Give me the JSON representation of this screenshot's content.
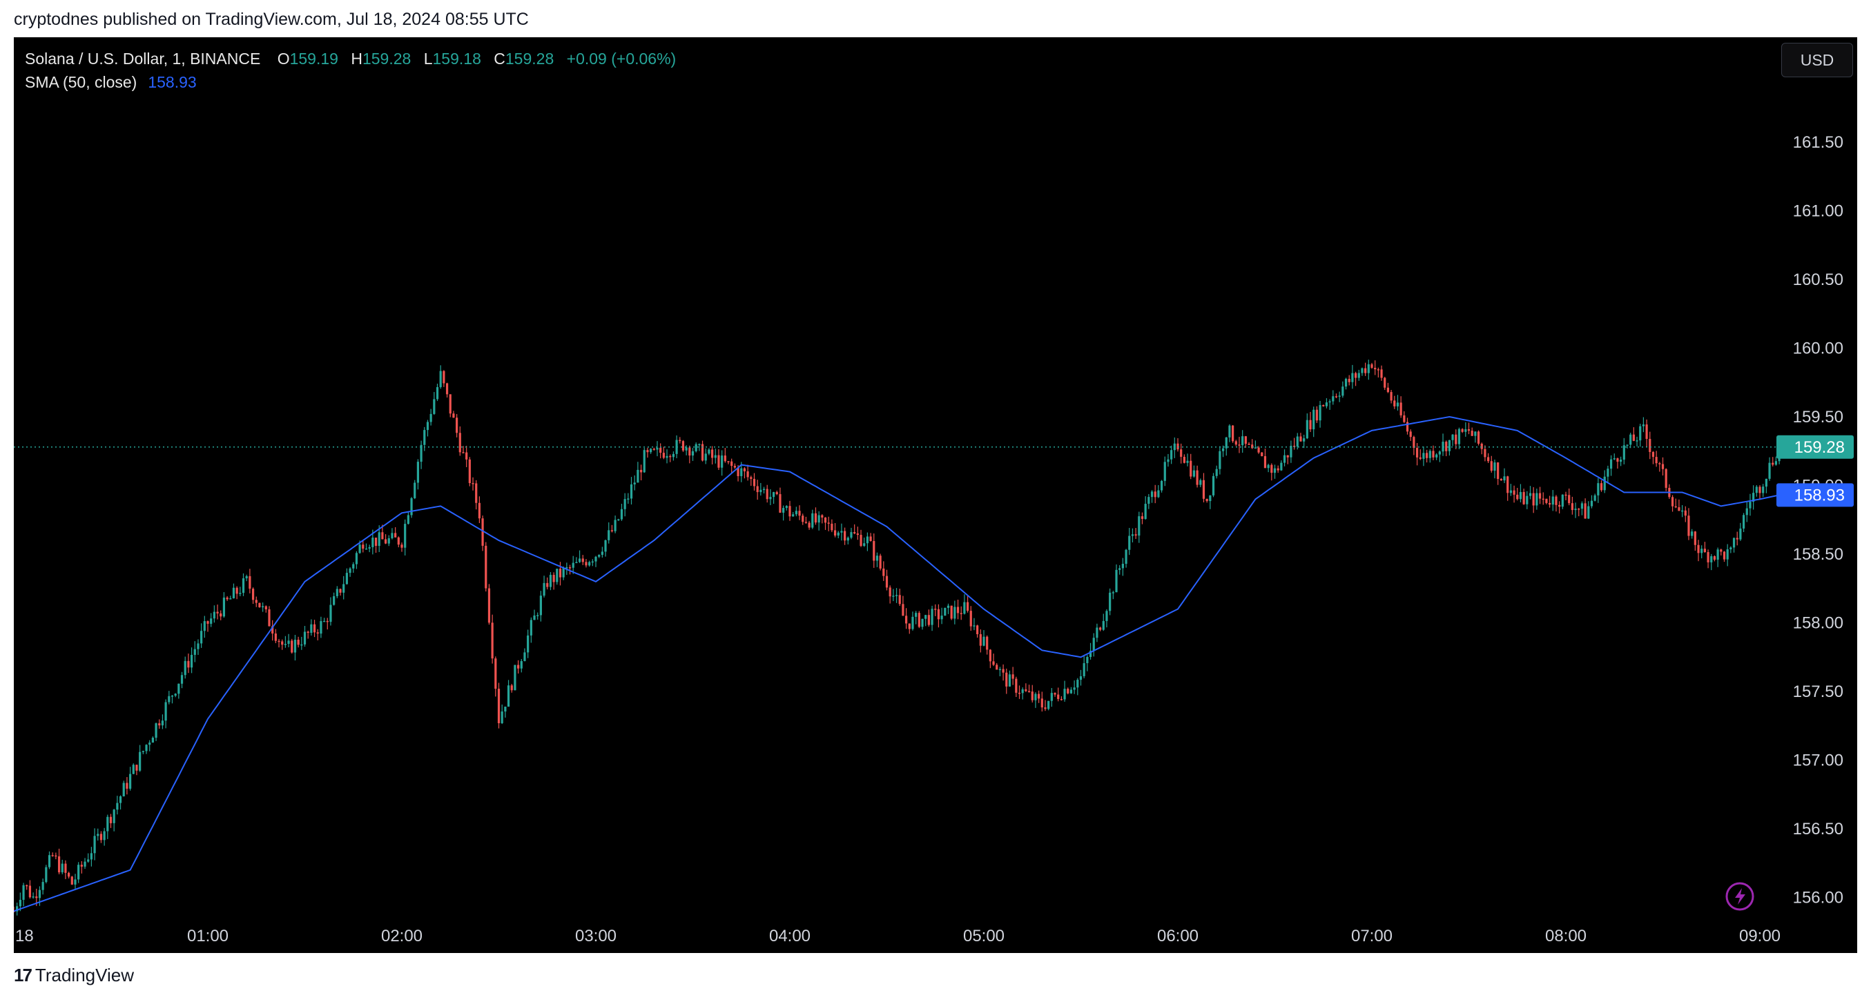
{
  "header": {
    "published_text": "cryptodnes published on TradingView.com, Jul 18, 2024 08:55 UTC"
  },
  "legend": {
    "symbol": "Solana / U.S. Dollar, 1, BINANCE",
    "open_key": "O",
    "open": "159.19",
    "high_key": "H",
    "high": "159.28",
    "low_key": "L",
    "low": "159.18",
    "close_key": "C",
    "close": "159.28",
    "change": "+0.09 (+0.06%)",
    "sma_label": "SMA (50, close)",
    "sma_value": "158.93"
  },
  "toolbar": {
    "currency_label": "USD"
  },
  "footer": {
    "brand": "TradingView",
    "logo_mark": "17"
  },
  "colors": {
    "up": "#26a69a",
    "down": "#ef5350",
    "sma": "#2962ff",
    "background": "#000000"
  },
  "icons": {
    "lightning": "lightning-icon"
  },
  "chart_data": {
    "type": "candlestick",
    "title": "Solana / U.S. Dollar, 1, BINANCE",
    "ylim": [
      155.7,
      162.0
    ],
    "y_ticks": [
      "156.00",
      "156.50",
      "157.00",
      "157.50",
      "158.00",
      "158.50",
      "159.00",
      "159.50",
      "160.00",
      "160.50",
      "161.00",
      "161.50"
    ],
    "x_ticks": [
      "18",
      "01:00",
      "02:00",
      "03:00",
      "04:00",
      "05:00",
      "06:00",
      "07:00",
      "08:00",
      "09:00"
    ],
    "last_price_label": "159.28",
    "sma_label": "158.93",
    "price_path": [
      [
        0.0,
        155.9
      ],
      [
        0.05,
        156.1
      ],
      [
        0.1,
        156.0
      ],
      [
        0.2,
        156.3
      ],
      [
        0.3,
        156.1
      ],
      [
        0.5,
        156.6
      ],
      [
        0.75,
        157.3
      ],
      [
        1.0,
        158.0
      ],
      [
        1.2,
        158.3
      ],
      [
        1.4,
        157.8
      ],
      [
        1.6,
        158.0
      ],
      [
        1.8,
        158.6
      ],
      [
        2.0,
        158.6
      ],
      [
        2.1,
        159.3
      ],
      [
        2.2,
        159.8
      ],
      [
        2.4,
        158.8
      ],
      [
        2.5,
        157.3
      ],
      [
        2.75,
        158.3
      ],
      [
        3.0,
        158.5
      ],
      [
        3.1,
        158.7
      ],
      [
        3.25,
        159.2
      ],
      [
        3.45,
        159.3
      ],
      [
        3.75,
        159.1
      ],
      [
        4.0,
        158.8
      ],
      [
        4.4,
        158.6
      ],
      [
        4.6,
        158.0
      ],
      [
        4.9,
        158.1
      ],
      [
        5.1,
        157.6
      ],
      [
        5.3,
        157.4
      ],
      [
        5.5,
        157.6
      ],
      [
        5.75,
        158.6
      ],
      [
        6.0,
        159.3
      ],
      [
        6.15,
        158.9
      ],
      [
        6.25,
        159.4
      ],
      [
        6.5,
        159.1
      ],
      [
        6.75,
        159.6
      ],
      [
        7.0,
        159.9
      ],
      [
        7.15,
        159.5
      ],
      [
        7.25,
        159.2
      ],
      [
        7.5,
        159.4
      ],
      [
        7.75,
        158.9
      ],
      [
        8.0,
        158.9
      ],
      [
        8.1,
        158.8
      ],
      [
        8.25,
        159.2
      ],
      [
        8.4,
        159.4
      ],
      [
        8.55,
        158.9
      ],
      [
        8.7,
        158.5
      ],
      [
        8.85,
        158.5
      ],
      [
        8.95,
        158.9
      ],
      [
        9.0,
        159.0
      ],
      [
        9.1,
        159.28
      ]
    ],
    "sma_path": [
      [
        0.0,
        155.9
      ],
      [
        0.6,
        156.2
      ],
      [
        1.0,
        157.3
      ],
      [
        1.5,
        158.3
      ],
      [
        2.0,
        158.8
      ],
      [
        2.2,
        158.85
      ],
      [
        2.5,
        158.6
      ],
      [
        3.0,
        158.3
      ],
      [
        3.3,
        158.6
      ],
      [
        3.75,
        159.15
      ],
      [
        4.0,
        159.1
      ],
      [
        4.5,
        158.7
      ],
      [
        5.0,
        158.1
      ],
      [
        5.3,
        157.8
      ],
      [
        5.5,
        157.75
      ],
      [
        6.0,
        158.1
      ],
      [
        6.4,
        158.9
      ],
      [
        6.7,
        159.2
      ],
      [
        7.0,
        159.4
      ],
      [
        7.4,
        159.5
      ],
      [
        7.75,
        159.4
      ],
      [
        8.0,
        159.2
      ],
      [
        8.3,
        158.95
      ],
      [
        8.6,
        158.95
      ],
      [
        8.8,
        158.85
      ],
      [
        9.0,
        158.9
      ],
      [
        9.1,
        158.93
      ]
    ]
  }
}
